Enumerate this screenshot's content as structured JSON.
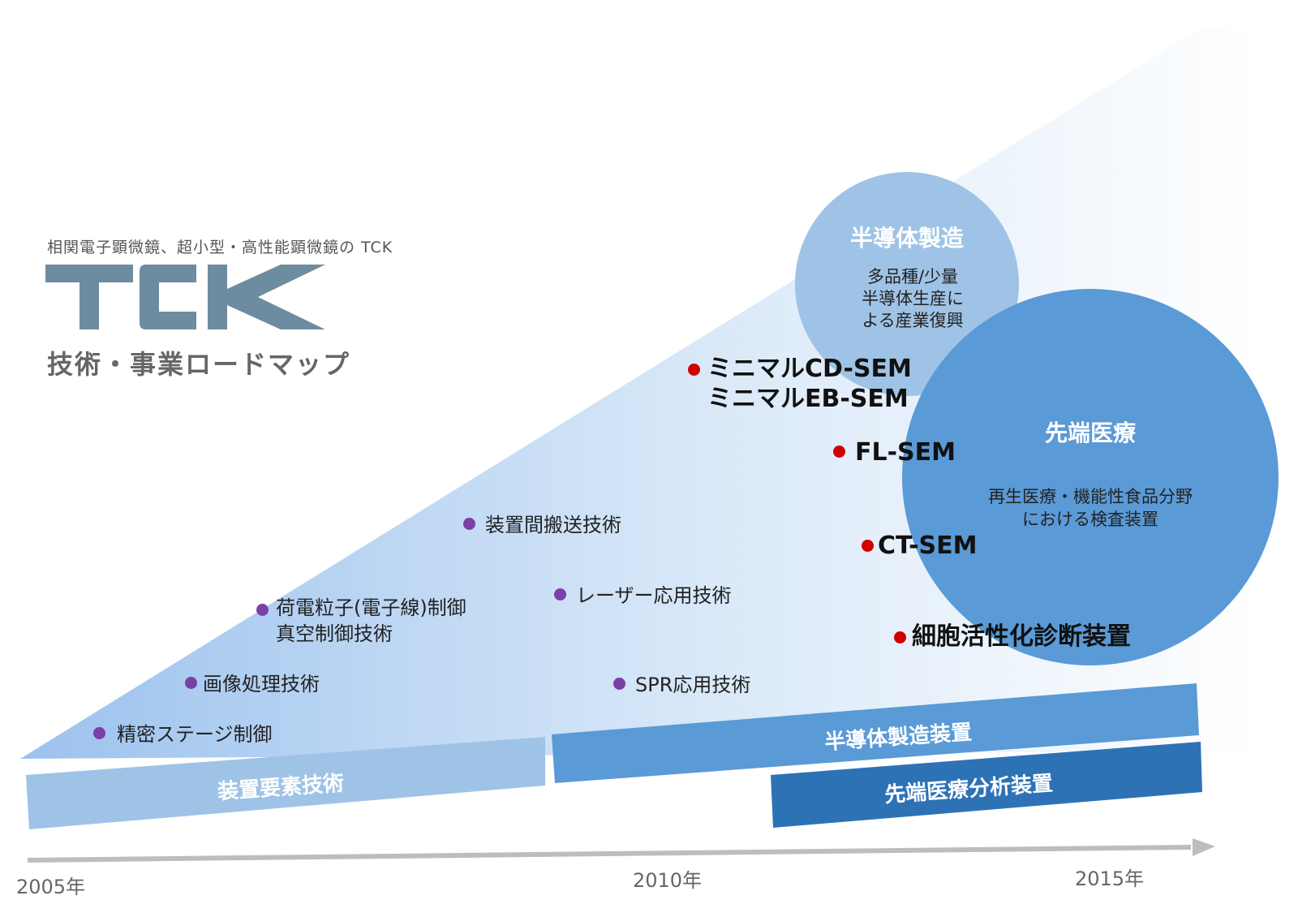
{
  "header": {
    "subtitle": "相関電子顕微鏡、超小型・高性能顕微鏡の TCK",
    "logo_text": "TCK",
    "roadmap_title": "技術・事業ロードマップ"
  },
  "technologies": [
    "精密ステージ制御",
    "画像処理技術",
    "荷電粒子(電子線)制御",
    "真空制御技術",
    "装置間搬送技術",
    "レーザー応用技術",
    "SPR応用技術"
  ],
  "products": [
    "ミニマルCD-SEM",
    "ミニマルEB-SEM",
    "FL-SEM",
    "CT-SEM",
    "細胞活性化診断装置"
  ],
  "circles": {
    "semiconductor": {
      "title": "半導体製造",
      "lines": [
        "多品種/少量",
        "半導体生産に",
        "よる産業復興"
      ]
    },
    "medical": {
      "title": "先端医療",
      "lines": [
        "再生医療・機能性食品分野",
        "における検査装置"
      ]
    }
  },
  "bands": {
    "element_tech": "装置要素技術",
    "semi_equipment": "半導体製造装置",
    "medical_analysis": "先端医療分析装置"
  },
  "timeline": {
    "years": [
      "2005年",
      "2010年",
      "2015年"
    ]
  },
  "colors": {
    "logo": "#6e8ca0",
    "purple_dot": "#7b3fa8",
    "red_dot": "#d10000",
    "light_band": "#9fc3e6",
    "mid_band": "#5a9ad6",
    "dark_band": "#2e72b6",
    "circle_light": "#9fc3e6",
    "circle_mid": "#5a9ad6",
    "arrow": "#bdbdbd"
  }
}
